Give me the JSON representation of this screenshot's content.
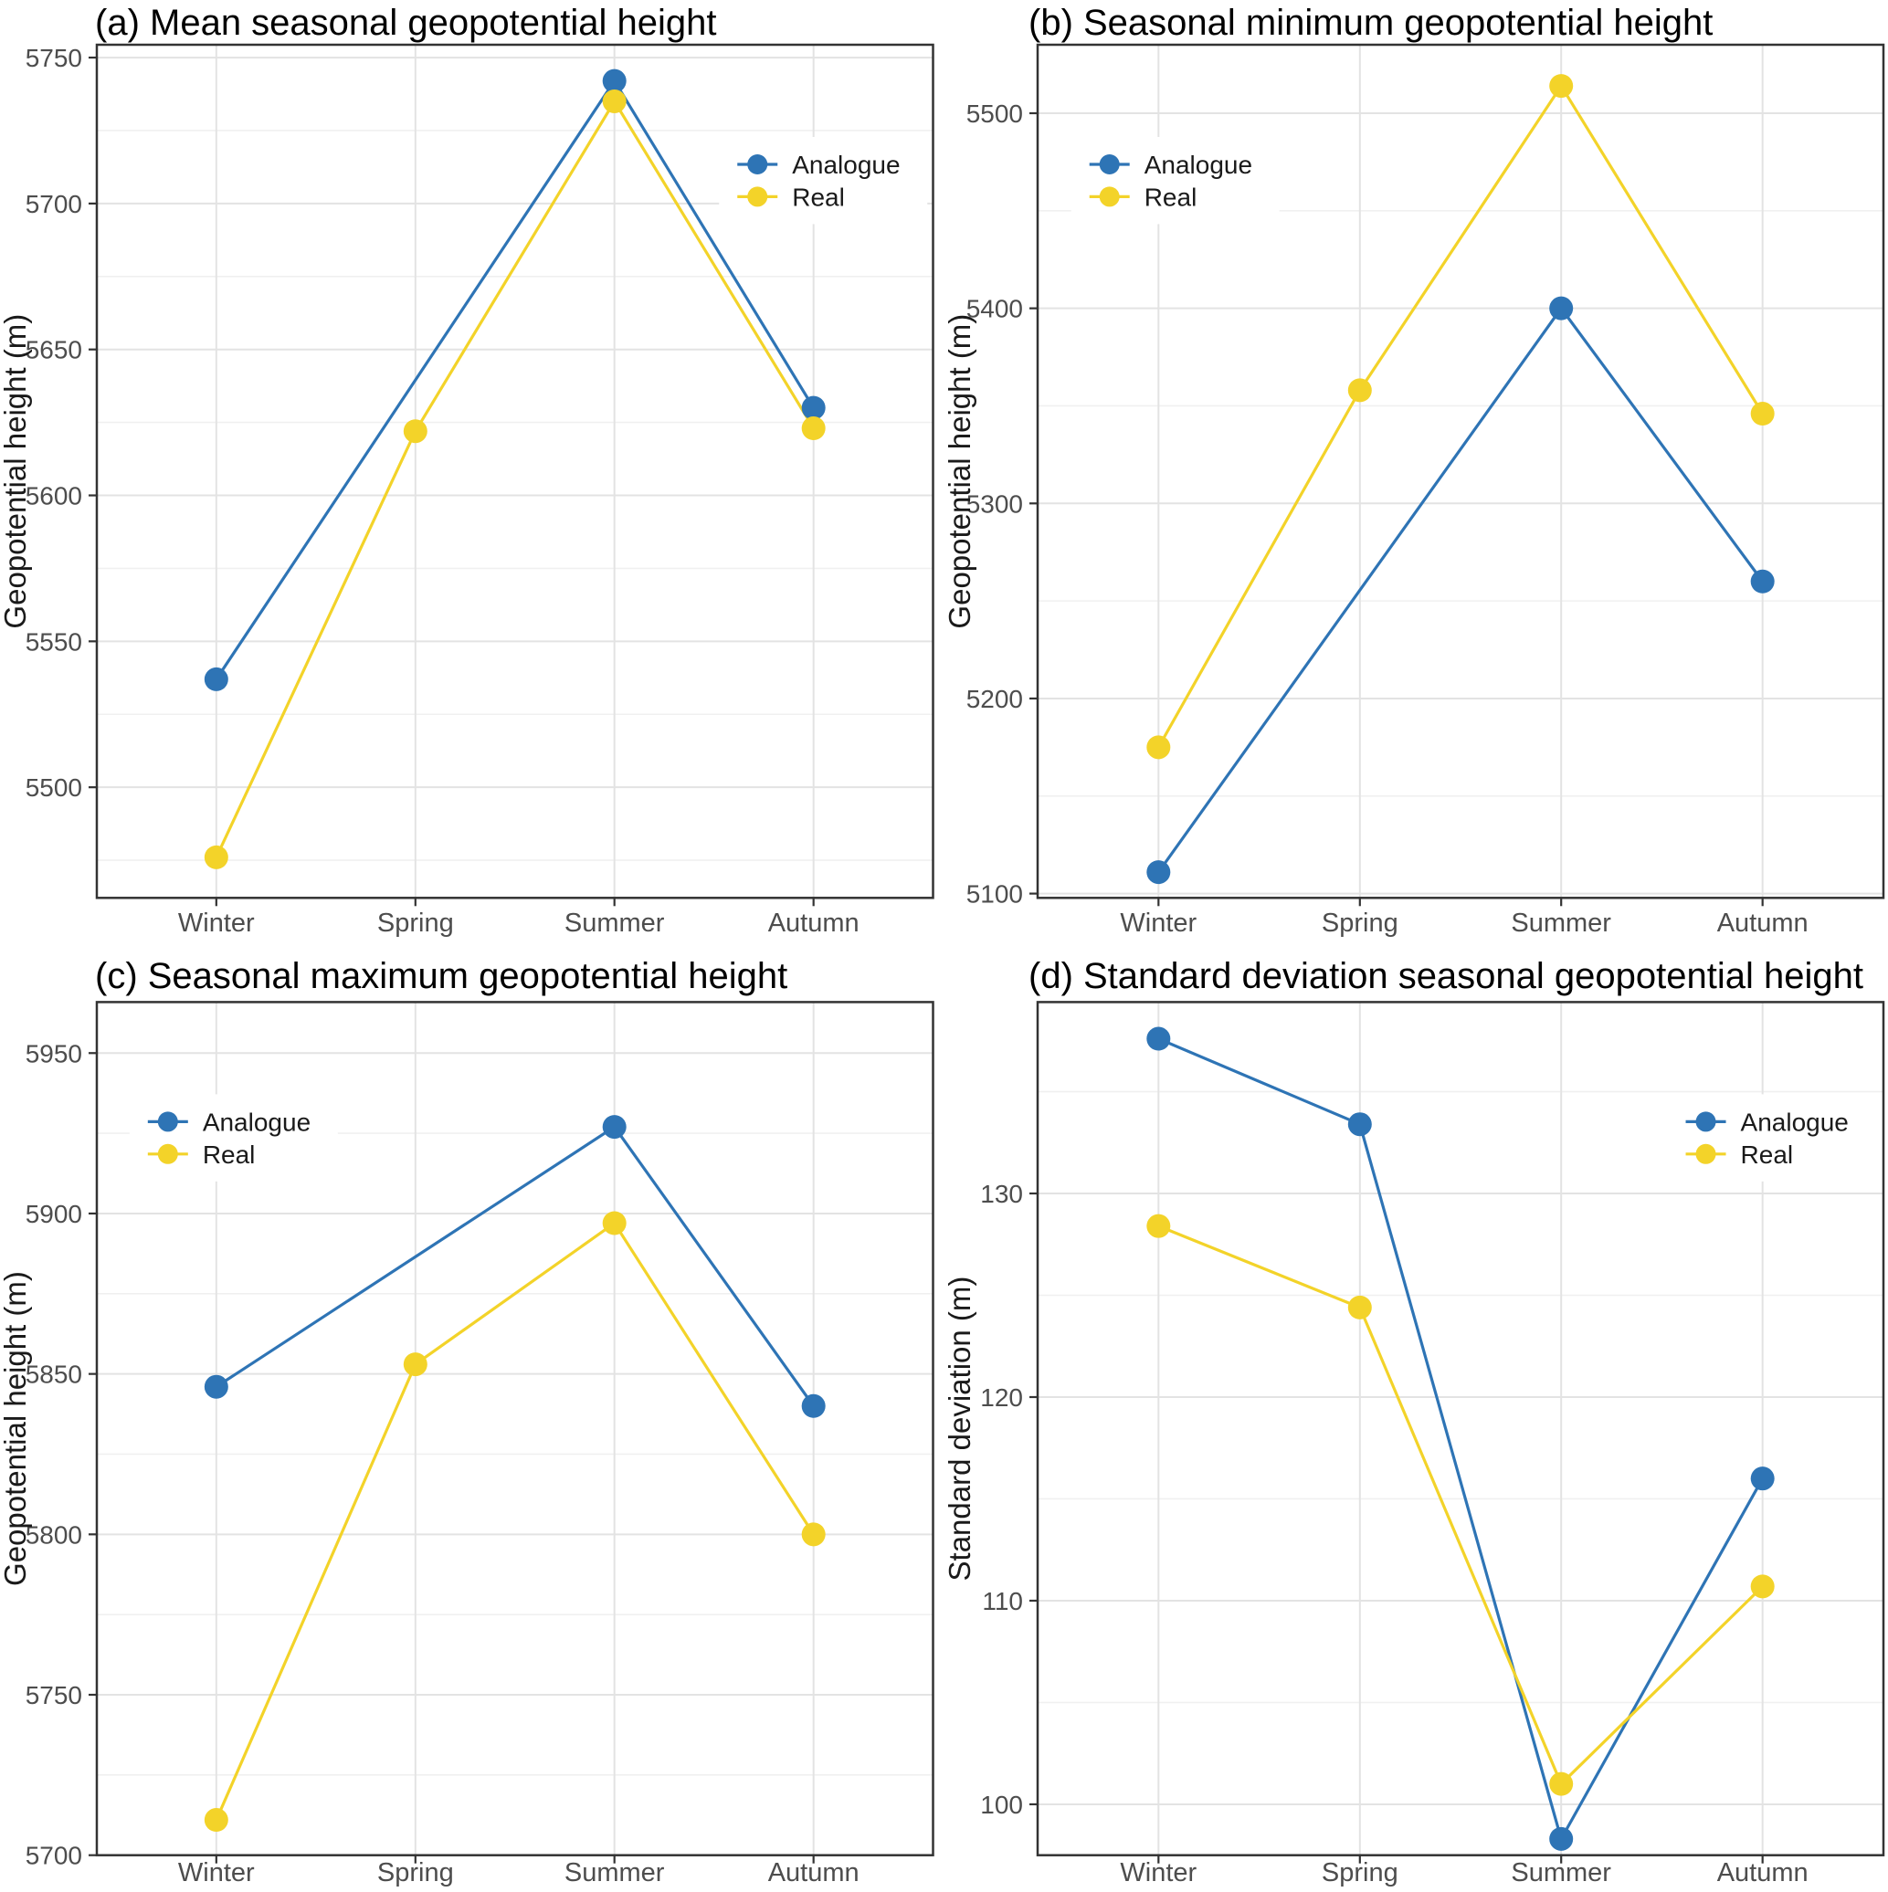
{
  "page": {
    "background": "#ffffff"
  },
  "colors": {
    "analogue": "#2e74b5",
    "real": "#f3d329",
    "grid_major": "#e3e3e3",
    "grid_minor": "#f0f0f0",
    "panel_border": "#333333",
    "tick_mark": "#333333",
    "tick_label": "#4d4d4d",
    "title_text": "#000000",
    "axis_label_text": "#1a1a1a",
    "legend_text": "#1a1a1a"
  },
  "legend_labels": [
    "Analogue",
    "Real"
  ],
  "chart_data": [
    {
      "id": "a",
      "type": "line",
      "title": "(a) Mean seasonal geopotential height",
      "ylabel": "Geopotential height (m)",
      "categories": [
        "Winter",
        "Spring",
        "Summer",
        "Autumn"
      ],
      "yticks": [
        5500,
        5550,
        5600,
        5650,
        5700,
        5750
      ],
      "ylim": [
        5462.1,
        5754.4
      ],
      "legend_side": "right",
      "series": [
        {
          "name": "Analogue",
          "color": "#2e74b5",
          "values": [
            5537,
            null,
            5742,
            5630
          ]
        },
        {
          "name": "Real",
          "color": "#f3d329",
          "values": [
            5476,
            5622,
            5735,
            5623
          ]
        }
      ]
    },
    {
      "id": "b",
      "type": "line",
      "title": "(b) Seasonal minimum geopotential height",
      "ylabel": "Geopotential height (m)",
      "categories": [
        "Winter",
        "Spring",
        "Summer",
        "Autumn"
      ],
      "yticks": [
        5100,
        5200,
        5300,
        5400,
        5500
      ],
      "ylim": [
        5097.8,
        5535.1
      ],
      "legend_side": "left",
      "series": [
        {
          "name": "Analogue",
          "color": "#2e74b5",
          "values": [
            5111,
            null,
            5400,
            5260
          ]
        },
        {
          "name": "Real",
          "color": "#f3d329",
          "values": [
            5175,
            5358,
            5514,
            5346
          ]
        }
      ]
    },
    {
      "id": "c",
      "type": "line",
      "title": "(c) Seasonal maximum geopotential height",
      "ylabel": "Geopotential height (m)",
      "categories": [
        "Winter",
        "Spring",
        "Summer",
        "Autumn"
      ],
      "yticks": [
        5700,
        5750,
        5800,
        5850,
        5900,
        5950
      ],
      "ylim": [
        5700.0,
        5965.9
      ],
      "legend_side": "left",
      "series": [
        {
          "name": "Analogue",
          "color": "#2e74b5",
          "values": [
            5846,
            null,
            5927,
            5840
          ]
        },
        {
          "name": "Real",
          "color": "#f3d329",
          "values": [
            5711,
            5853,
            5897,
            5800
          ]
        }
      ]
    },
    {
      "id": "d",
      "type": "line",
      "title": "(d) Standard deviation seasonal geopotential height",
      "ylabel": "Standard deviation (m)",
      "categories": [
        "Winter",
        "Spring",
        "Summer",
        "Autumn"
      ],
      "yticks": [
        100,
        110,
        120,
        130
      ],
      "ylim": [
        97.5,
        139.4
      ],
      "legend_side": "right",
      "series": [
        {
          "name": "Analogue",
          "color": "#2e74b5",
          "values": [
            137.6,
            133.4,
            98.3,
            116.0
          ]
        },
        {
          "name": "Real",
          "color": "#f3d329",
          "values": [
            128.4,
            124.4,
            101.0,
            110.7
          ]
        }
      ]
    }
  ]
}
